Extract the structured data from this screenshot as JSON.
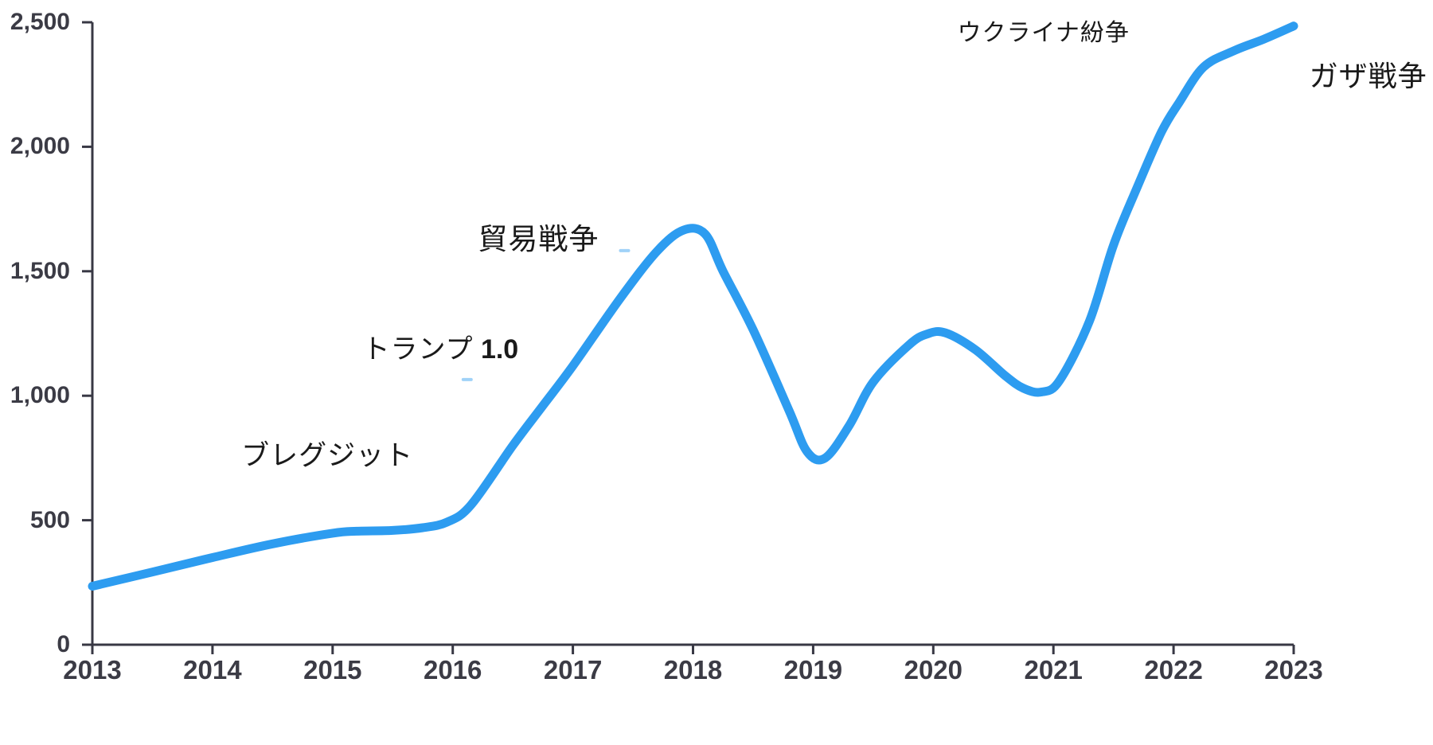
{
  "chart_data": {
    "type": "line",
    "title": "",
    "xlabel": "",
    "ylabel": "",
    "x_range": [
      2013,
      2023
    ],
    "y_range": [
      0,
      2500
    ],
    "grid": false,
    "legend": "none",
    "line_color": "#2D9CF0",
    "axis_color": "#383844",
    "label_color": "#3b3b45",
    "annotation_color": "#1a1a1a",
    "x_ticks": [
      2013,
      2014,
      2015,
      2016,
      2017,
      2018,
      2019,
      2020,
      2021,
      2022,
      2023
    ],
    "x_tick_labels": [
      "2013",
      "2014",
      "2015",
      "2016",
      "2017",
      "2018",
      "2019",
      "2020",
      "2021",
      "2022",
      "2023"
    ],
    "y_ticks": [
      0,
      500,
      1000,
      1500,
      2000,
      2500
    ],
    "y_tick_labels": [
      "0",
      "500",
      "1,000",
      "1,500",
      "2,000",
      "2,500"
    ],
    "series": [
      {
        "name": "main-series",
        "points": [
          [
            2013.0,
            235
          ],
          [
            2013.5,
            292
          ],
          [
            2014.0,
            350
          ],
          [
            2014.5,
            405
          ],
          [
            2015.0,
            448
          ],
          [
            2015.2,
            456
          ],
          [
            2015.5,
            459
          ],
          [
            2015.75,
            470
          ],
          [
            2015.95,
            492
          ],
          [
            2016.15,
            560
          ],
          [
            2016.5,
            800
          ],
          [
            2016.75,
            960
          ],
          [
            2017.0,
            1120
          ],
          [
            2017.4,
            1395
          ],
          [
            2017.7,
            1580
          ],
          [
            2017.92,
            1665
          ],
          [
            2018.1,
            1650
          ],
          [
            2018.25,
            1500
          ],
          [
            2018.5,
            1265
          ],
          [
            2018.8,
            940
          ],
          [
            2018.95,
            775
          ],
          [
            2019.1,
            750
          ],
          [
            2019.3,
            880
          ],
          [
            2019.5,
            1055
          ],
          [
            2019.8,
            1205
          ],
          [
            2019.95,
            1248
          ],
          [
            2020.1,
            1253
          ],
          [
            2020.35,
            1185
          ],
          [
            2020.6,
            1080
          ],
          [
            2020.75,
            1030
          ],
          [
            2020.9,
            1015
          ],
          [
            2021.05,
            1060
          ],
          [
            2021.3,
            1300
          ],
          [
            2021.5,
            1605
          ],
          [
            2021.7,
            1840
          ],
          [
            2021.9,
            2060
          ],
          [
            2022.05,
            2180
          ],
          [
            2022.25,
            2320
          ],
          [
            2022.5,
            2385
          ],
          [
            2022.75,
            2432
          ],
          [
            2023.0,
            2485
          ]
        ]
      }
    ],
    "annotations": [
      {
        "name": "annotation-brexit",
        "text": "ブレグジット",
        "suffix": "",
        "x": 2014.24,
        "y": 822,
        "size": 35
      },
      {
        "name": "annotation-trump-1-0",
        "text": "トランプ",
        "suffix": " 1.0",
        "x": 2015.25,
        "y": 1247,
        "size": 34
      },
      {
        "name": "annotation-trade-war",
        "text": "貿易戦争",
        "suffix": "",
        "x": 2016.21,
        "y": 1691,
        "size": 37
      },
      {
        "name": "annotation-ukraine-conflict",
        "text": "ウクライナ紛争",
        "suffix": "",
        "x": 2020.2,
        "y": 2510,
        "size": 30
      },
      {
        "name": "annotation-gaza-war",
        "text": "ガザ戦争",
        "suffix": "",
        "x": 2023.13,
        "y": 2347,
        "size": 36
      }
    ],
    "stray_marks": [
      {
        "name": "stray-dash-1",
        "x": 2016.12,
        "y": 1065
      },
      {
        "name": "stray-dash-2",
        "x": 2017.43,
        "y": 1583
      }
    ]
  }
}
